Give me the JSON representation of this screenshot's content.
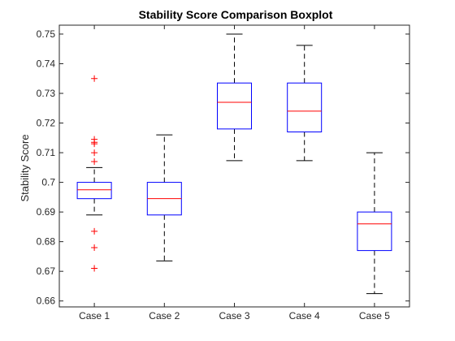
{
  "chart_data": {
    "type": "boxplot",
    "title": "Stability Score Comparison Boxplot",
    "xlabel": "",
    "ylabel": "Stability Score",
    "categories": [
      "Case 1",
      "Case 2",
      "Case 3",
      "Case 4",
      "Case 5"
    ],
    "ylim": [
      0.658,
      0.753
    ],
    "yticks": [
      0.66,
      0.67,
      0.68,
      0.69,
      0.7,
      0.71,
      0.72,
      0.73,
      0.74,
      0.75
    ],
    "ytick_labels": [
      "0.66",
      "0.67",
      "0.68",
      "0.69",
      "0.7",
      "0.71",
      "0.72",
      "0.73",
      "0.74",
      "0.75"
    ],
    "grid": false,
    "colors": {
      "box": "#0000ff",
      "median": "#ff0000",
      "whisker": "#000000",
      "outlier": "#ff0000"
    },
    "boxes": [
      {
        "category": "Case 1",
        "whisker_low": 0.689,
        "q1": 0.6945,
        "median": 0.6975,
        "q3": 0.7,
        "whisker_high": 0.705,
        "outliers": [
          0.735,
          0.7145,
          0.7135,
          0.713,
          0.71,
          0.707,
          0.6835,
          0.678,
          0.671
        ]
      },
      {
        "category": "Case 2",
        "whisker_low": 0.6735,
        "q1": 0.689,
        "median": 0.6945,
        "q3": 0.7,
        "whisker_high": 0.716,
        "outliers": []
      },
      {
        "category": "Case 3",
        "whisker_low": 0.7073,
        "q1": 0.718,
        "median": 0.727,
        "q3": 0.7335,
        "whisker_high": 0.75,
        "outliers": []
      },
      {
        "category": "Case 4",
        "whisker_low": 0.7073,
        "q1": 0.717,
        "median": 0.724,
        "q3": 0.7335,
        "whisker_high": 0.7462,
        "outliers": []
      },
      {
        "category": "Case 5",
        "whisker_low": 0.6625,
        "q1": 0.677,
        "median": 0.686,
        "q3": 0.69,
        "whisker_high": 0.71,
        "outliers": []
      }
    ]
  }
}
